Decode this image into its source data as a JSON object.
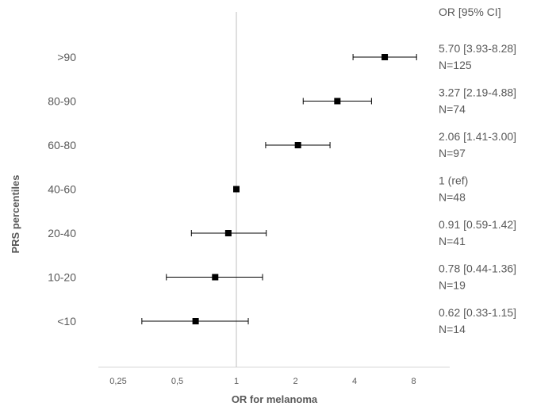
{
  "chart_data": {
    "type": "forest",
    "xlabel": "OR for melanoma",
    "ylabel": "PRS percentiles",
    "column_header": "OR [95% CI]",
    "x_scale": "log2",
    "xlim": [
      0.25,
      11
    ],
    "x_ticks": [
      0.25,
      0.5,
      1,
      2,
      4,
      8
    ],
    "x_tick_labels": [
      "0,25",
      "0,5",
      "1",
      "2",
      "4",
      "8"
    ],
    "reference_line": 1,
    "marker_color": "#000000",
    "rows": [
      {
        "category": ">90",
        "or": 5.7,
        "ci": [
          3.93,
          8.28
        ],
        "or_text": "5.70 [3.93-8.28]",
        "n_text": "N=125"
      },
      {
        "category": "80-90",
        "or": 3.27,
        "ci": [
          2.19,
          4.88
        ],
        "or_text": "3.27 [2.19-4.88]",
        "n_text": "N=74"
      },
      {
        "category": "60-80",
        "or": 2.06,
        "ci": [
          1.41,
          3.0
        ],
        "or_text": "2.06 [1.41-3.00]",
        "n_text": "N=97"
      },
      {
        "category": "40-60",
        "or": 1.0,
        "ci": null,
        "or_text": "1 (ref)",
        "n_text": "N=48"
      },
      {
        "category": "20-40",
        "or": 0.91,
        "ci": [
          0.59,
          1.42
        ],
        "or_text": "0.91 [0.59-1.42]",
        "n_text": "N=41"
      },
      {
        "category": "10-20",
        "or": 0.78,
        "ci": [
          0.44,
          1.36
        ],
        "or_text": "0.78 [0.44-1.36]",
        "n_text": "N=19"
      },
      {
        "category": "<10",
        "or": 0.62,
        "ci": [
          0.33,
          1.15
        ],
        "or_text": "0.62 [0.33-1.15]",
        "n_text": "N=14"
      }
    ]
  }
}
